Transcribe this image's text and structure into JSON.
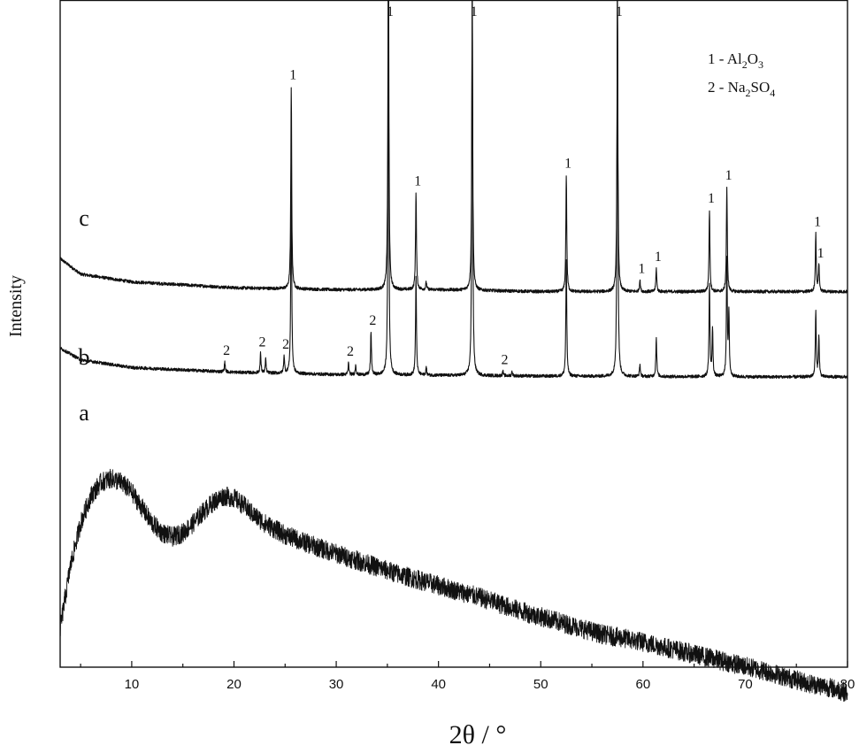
{
  "chart_data": {
    "type": "line",
    "xlabel": "2θ / °",
    "ylabel": "Intensity",
    "xlim": [
      3,
      80
    ],
    "x_ticks": [
      10,
      20,
      30,
      40,
      50,
      60,
      70,
      80
    ],
    "y_ticks_labeled": false,
    "grid": false,
    "legend": {
      "placement": "top-right",
      "entries": [
        {
          "text": "1 - Al",
          "sub1": "2",
          "mid": "O",
          "sub2": "3"
        },
        {
          "text": "2 - Na",
          "sub1": "2",
          "mid": "SO",
          "sub2": "4"
        }
      ]
    },
    "series": [
      {
        "name": "c",
        "baseline": [
          [
            3,
            0.37
          ],
          [
            5,
            0.33
          ],
          [
            10,
            0.31
          ],
          [
            20,
            0.295
          ],
          [
            30,
            0.29
          ],
          [
            40,
            0.29
          ],
          [
            50,
            0.285
          ],
          [
            60,
            0.285
          ],
          [
            70,
            0.285
          ],
          [
            80,
            0.285
          ]
        ],
        "peaks": [
          {
            "x": 25.6,
            "height": 0.52,
            "label": "1"
          },
          {
            "x": 35.1,
            "height": 1.0,
            "label": "1"
          },
          {
            "x": 37.8,
            "height": 0.25,
            "label": "1"
          },
          {
            "x": 38.8,
            "height": 0.02,
            "label": ""
          },
          {
            "x": 43.3,
            "height": 0.78,
            "label": "1"
          },
          {
            "x": 52.5,
            "height": 0.3,
            "label": "1"
          },
          {
            "x": 57.5,
            "height": 0.77,
            "label": "1"
          },
          {
            "x": 59.7,
            "height": 0.03,
            "label": "1"
          },
          {
            "x": 61.3,
            "height": 0.06,
            "label": "1"
          },
          {
            "x": 66.5,
            "height": 0.21,
            "label": "1"
          },
          {
            "x": 68.2,
            "height": 0.27,
            "label": "1"
          },
          {
            "x": 76.9,
            "height": 0.15,
            "label": "1"
          },
          {
            "x": 77.2,
            "height": 0.07,
            "label": "1"
          }
        ]
      },
      {
        "name": "b",
        "baseline": [
          [
            3,
            0.14
          ],
          [
            5,
            0.11
          ],
          [
            10,
            0.09
          ],
          [
            20,
            0.078
          ],
          [
            30,
            0.072
          ],
          [
            40,
            0.07
          ],
          [
            50,
            0.068
          ],
          [
            60,
            0.067
          ],
          [
            70,
            0.066
          ],
          [
            80,
            0.066
          ]
        ],
        "peaks": [
          {
            "x": 19.1,
            "height": 0.025,
            "label": "2"
          },
          {
            "x": 22.6,
            "height": 0.05,
            "label": "2"
          },
          {
            "x": 23.1,
            "height": 0.035,
            "label": ""
          },
          {
            "x": 24.9,
            "height": 0.045,
            "label": "2"
          },
          {
            "x": 25.6,
            "height": 0.52,
            "label": ""
          },
          {
            "x": 31.2,
            "height": 0.03,
            "label": "2"
          },
          {
            "x": 31.9,
            "height": 0.025,
            "label": ""
          },
          {
            "x": 33.4,
            "height": 0.11,
            "label": "2"
          },
          {
            "x": 35.1,
            "height": 0.99,
            "label": ""
          },
          {
            "x": 37.8,
            "height": 0.25,
            "label": ""
          },
          {
            "x": 38.8,
            "height": 0.02,
            "label": ""
          },
          {
            "x": 43.3,
            "height": 0.99,
            "label": ""
          },
          {
            "x": 46.3,
            "height": 0.012,
            "label": "2"
          },
          {
            "x": 47.2,
            "height": 0.012,
            "label": ""
          },
          {
            "x": 52.5,
            "height": 0.3,
            "label": ""
          },
          {
            "x": 57.5,
            "height": 0.99,
            "label": ""
          },
          {
            "x": 59.7,
            "height": 0.03,
            "label": ""
          },
          {
            "x": 61.3,
            "height": 0.1,
            "label": ""
          },
          {
            "x": 66.5,
            "height": 0.24,
            "label": ""
          },
          {
            "x": 66.8,
            "height": 0.12,
            "label": ""
          },
          {
            "x": 68.2,
            "height": 0.3,
            "label": ""
          },
          {
            "x": 68.4,
            "height": 0.16,
            "label": ""
          },
          {
            "x": 76.9,
            "height": 0.17,
            "label": ""
          },
          {
            "x": 77.2,
            "height": 0.1,
            "label": ""
          }
        ]
      },
      {
        "name": "a",
        "baseline": [
          [
            3,
            -0.58
          ],
          [
            4,
            -0.42
          ],
          [
            5,
            -0.31
          ],
          [
            6,
            -0.24
          ],
          [
            7,
            -0.205
          ],
          [
            8,
            -0.195
          ],
          [
            9,
            -0.205
          ],
          [
            10,
            -0.23
          ],
          [
            11,
            -0.27
          ],
          [
            12,
            -0.31
          ],
          [
            13,
            -0.335
          ],
          [
            14,
            -0.345
          ],
          [
            15,
            -0.335
          ],
          [
            16,
            -0.31
          ],
          [
            17,
            -0.28
          ],
          [
            18,
            -0.255
          ],
          [
            19,
            -0.24
          ],
          [
            20,
            -0.245
          ],
          [
            21,
            -0.265
          ],
          [
            22,
            -0.29
          ],
          [
            23,
            -0.31
          ],
          [
            25,
            -0.34
          ],
          [
            28,
            -0.37
          ],
          [
            32,
            -0.405
          ],
          [
            36,
            -0.44
          ],
          [
            40,
            -0.47
          ],
          [
            44,
            -0.5
          ],
          [
            48,
            -0.535
          ],
          [
            52,
            -0.565
          ],
          [
            56,
            -0.595
          ],
          [
            60,
            -0.615
          ],
          [
            64,
            -0.64
          ],
          [
            68,
            -0.665
          ],
          [
            72,
            -0.69
          ],
          [
            76,
            -0.72
          ],
          [
            78,
            -0.73
          ],
          [
            80,
            -0.745
          ]
        ],
        "noise_amplitude": 0.025,
        "peaks": []
      }
    ]
  }
}
